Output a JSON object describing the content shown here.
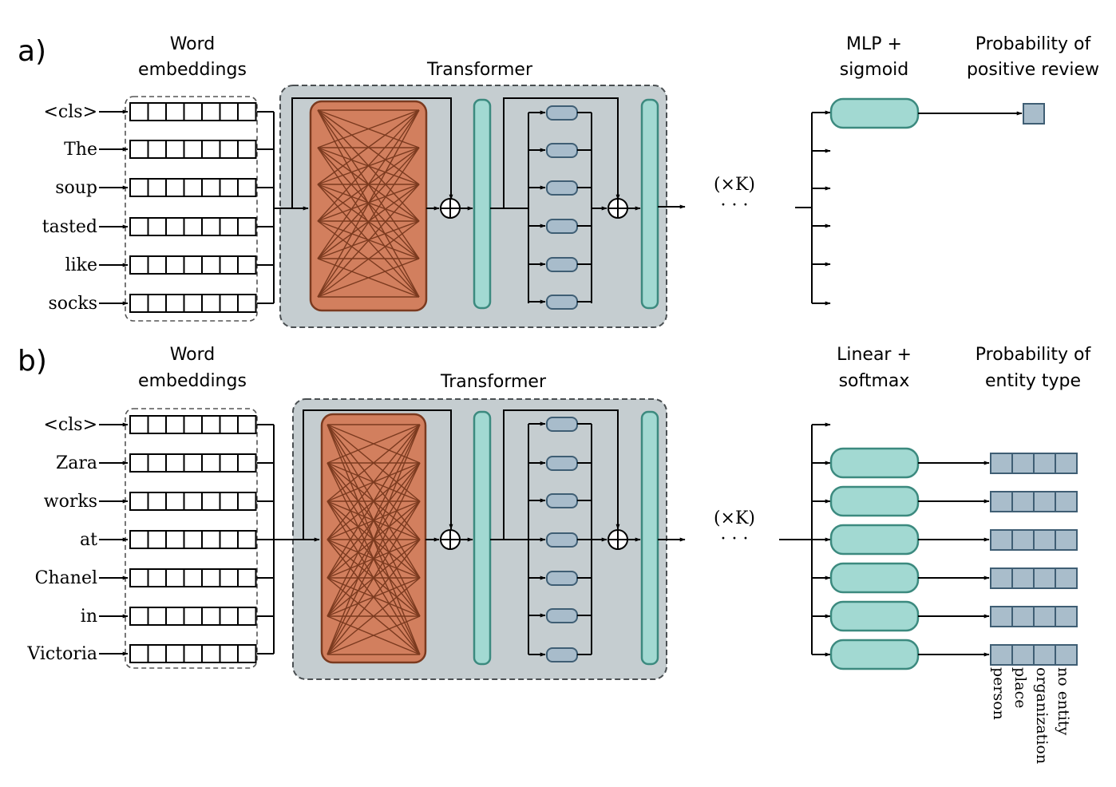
{
  "panel_a": {
    "label": "a)",
    "embed_title_1": "Word",
    "embed_title_2": "embeddings",
    "transformer_title": "Transformer",
    "repeat": "(×K)",
    "ellipsis": "· · ·",
    "head_title_1": "MLP +",
    "head_title_2": "sigmoid",
    "out_title_1": "Probability of",
    "out_title_2": "positive review",
    "tokens": [
      "<cls>",
      "The",
      "soup",
      "tasted",
      "like",
      "socks"
    ]
  },
  "panel_b": {
    "label": "b)",
    "embed_title_1": "Word",
    "embed_title_2": "embeddings",
    "transformer_title": "Transformer",
    "repeat": "(×K)",
    "ellipsis": "· · ·",
    "head_title_1": "Linear +",
    "head_title_2": "softmax",
    "out_title_1": "Probability of",
    "out_title_2": "entity type",
    "tokens": [
      "<cls>",
      "Zara",
      "works",
      "at",
      "Chanel",
      "in",
      "Victoria"
    ],
    "entity_labels": [
      "person",
      "place",
      "organization",
      "no entity"
    ]
  },
  "colors": {
    "attention_fill": "#d27f5e",
    "attention_edge": "#7b3a1f",
    "norm_fill": "#a2d9d2",
    "norm_edge": "#3c8a7f",
    "mlp_unit_fill": "#a8bccb",
    "mlp_unit_edge": "#3f5e74",
    "transformer_bg": "#c5cdd0",
    "output_fill": "#a9bdcb"
  }
}
